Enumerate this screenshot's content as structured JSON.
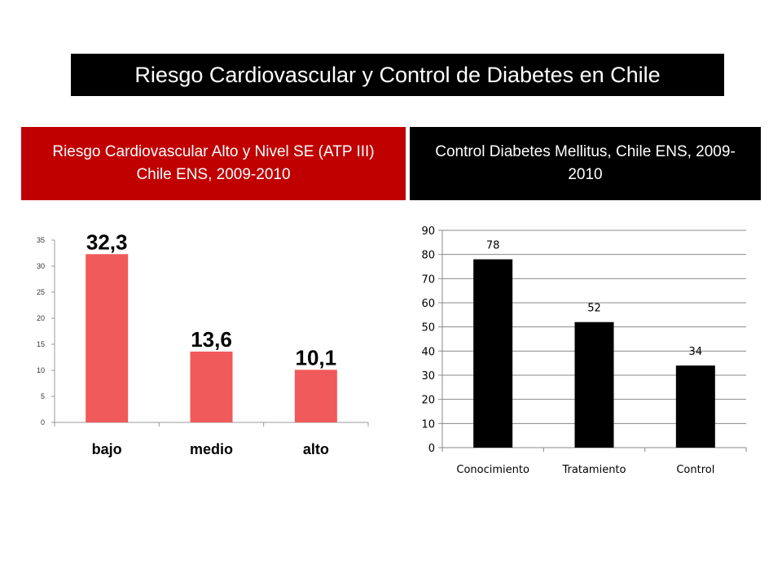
{
  "title": "Riesgo Cardiovascular y Control de Diabetes en Chile",
  "panels": {
    "left_header": "Riesgo Cardiovascular Alto y Nivel SE (ATP III) Chile ENS, 2009-2010",
    "right_header": "Control Diabetes Mellitus, Chile ENS, 2009-2010"
  },
  "colors": {
    "title_bg": "#000000",
    "left_header_bg": "#c00000",
    "right_header_bg": "#000000",
    "left_bar": "#f05a5a",
    "right_bar": "#000000"
  },
  "chart_data": [
    {
      "type": "bar",
      "categories": [
        "bajo",
        "medio",
        "alto"
      ],
      "values": [
        32.3,
        13.6,
        10.1
      ],
      "data_labels": [
        "32,3",
        "13,6",
        "10,1"
      ],
      "yticks": [
        "0",
        "5",
        "10",
        "15",
        "20",
        "25",
        "30",
        "35"
      ],
      "ylim": [
        0,
        35
      ],
      "grid": false,
      "legend": "none"
    },
    {
      "type": "bar",
      "categories": [
        "Conocimiento",
        "Tratamiento",
        "Control"
      ],
      "values": [
        78,
        52,
        34
      ],
      "data_labels": [
        "78",
        "52",
        "34"
      ],
      "yticks": [
        "0",
        "10",
        "20",
        "30",
        "40",
        "50",
        "60",
        "70",
        "80",
        "90"
      ],
      "ylim": [
        0,
        90
      ],
      "grid": true,
      "legend": "none"
    }
  ]
}
